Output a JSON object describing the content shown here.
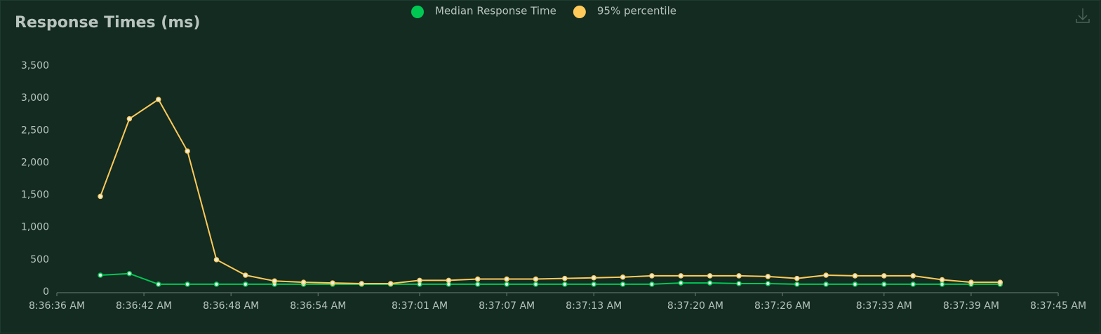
{
  "chart_data": {
    "type": "line",
    "title": "Response Times (ms)",
    "x": [
      "8:36:39 AM",
      "8:36:41 AM",
      "8:36:43 AM",
      "8:36:45 AM",
      "8:36:47 AM",
      "8:36:49 AM",
      "8:36:51 AM",
      "8:36:53 AM",
      "8:36:55 AM",
      "8:36:57 AM",
      "8:36:59 AM",
      "8:37:01 AM",
      "8:37:03 AM",
      "8:37:05 AM",
      "8:37:07 AM",
      "8:37:09 AM",
      "8:37:11 AM",
      "8:37:13 AM",
      "8:37:15 AM",
      "8:37:17 AM",
      "8:37:19 AM",
      "8:37:21 AM",
      "8:37:23 AM",
      "8:37:25 AM",
      "8:37:27 AM",
      "8:37:29 AM",
      "8:37:31 AM",
      "8:37:33 AM",
      "8:37:35 AM",
      "8:37:37 AM",
      "8:37:39 AM",
      "8:37:41 AM"
    ],
    "series": [
      {
        "name": "Median Response Time",
        "color": "#00c853",
        "values": [
          260,
          285,
          120,
          120,
          120,
          120,
          120,
          120,
          120,
          120,
          120,
          120,
          120,
          120,
          120,
          120,
          120,
          120,
          120,
          120,
          140,
          140,
          130,
          130,
          120,
          120,
          120,
          120,
          120,
          120,
          120,
          120
        ]
      },
      {
        "name": "95% percentile",
        "color": "#ffca5a",
        "values": [
          1480,
          2680,
          2980,
          2180,
          500,
          260,
          170,
          150,
          140,
          130,
          130,
          180,
          180,
          200,
          200,
          200,
          210,
          220,
          230,
          250,
          250,
          250,
          250,
          240,
          210,
          260,
          250,
          250,
          250,
          190,
          150,
          150
        ]
      }
    ],
    "xlim": [
      "8:36:36 AM",
      "8:37:45 AM"
    ],
    "xticks": [
      "8:36:36 AM",
      "8:36:42 AM",
      "8:36:48 AM",
      "8:36:54 AM",
      "8:37:01 AM",
      "8:37:07 AM",
      "8:37:13 AM",
      "8:37:20 AM",
      "8:37:26 AM",
      "8:37:33 AM",
      "8:37:39 AM",
      "8:37:45 AM"
    ],
    "ylim": [
      0,
      3500
    ],
    "yticks": [
      0,
      500,
      {
        "value": 1000,
        "label": "1,000"
      },
      {
        "value": 1500,
        "label": "1,500"
      },
      {
        "value": 2000,
        "label": "2,000"
      },
      {
        "value": 2500,
        "label": "2,500"
      },
      {
        "value": 3000,
        "label": "3,000"
      },
      {
        "value": 3500,
        "label": "3,500"
      }
    ],
    "legend": "top"
  }
}
